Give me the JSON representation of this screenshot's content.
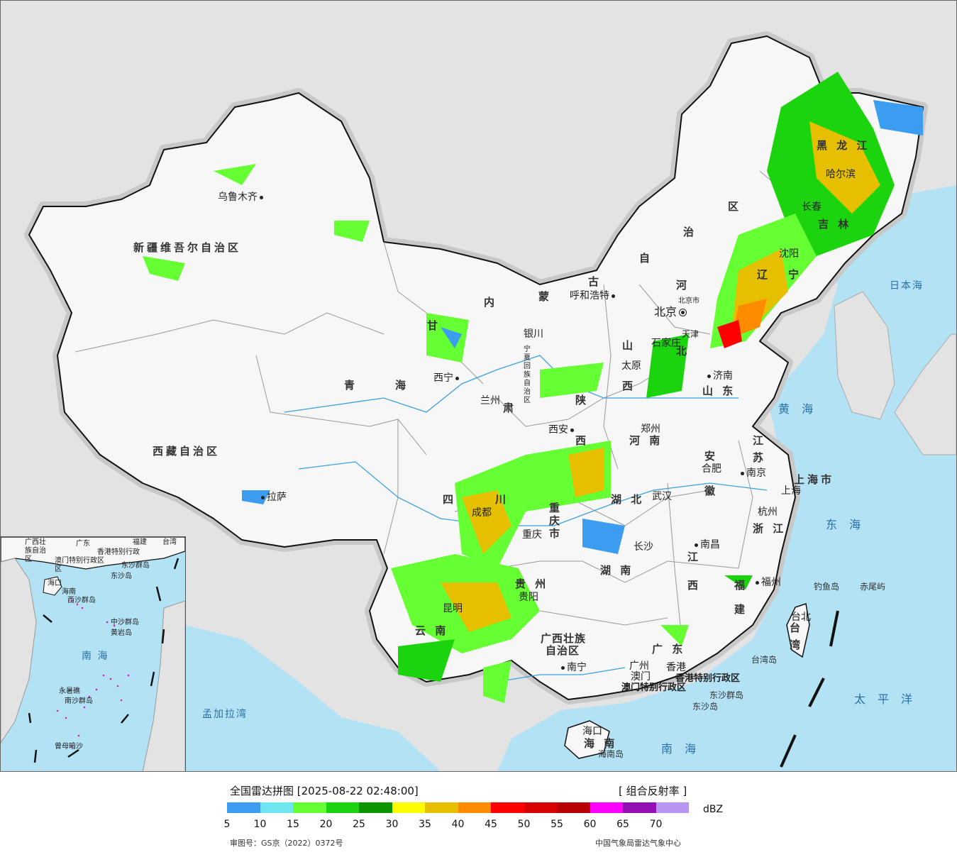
{
  "legend": {
    "title": "全国雷达拼图 [2025-08-22 02:48:00]",
    "product": "[ 组合反射率 ]",
    "unit": "dBZ",
    "colors": [
      "#3b9cf0",
      "#6ee6f0",
      "#66ff33",
      "#1cd40e",
      "#0b9400",
      "#fffb00",
      "#e6c000",
      "#ff8c00",
      "#ff0000",
      "#d80000",
      "#b80000",
      "#ff00ff",
      "#9410b4",
      "#b696f0"
    ],
    "ticks": [
      "5",
      "10",
      "15",
      "20",
      "25",
      "30",
      "35",
      "40",
      "45",
      "50",
      "55",
      "60",
      "65",
      "70"
    ],
    "approval": "审图号：GS京（2022）0372号",
    "agency": "中国气象局雷达气象中心"
  },
  "map": {
    "colors": {
      "land": "#f7f7f7",
      "sea": "#b3e2f5",
      "foreign": "#e3e3e3",
      "border": "#111111",
      "river": "#3aa0e0"
    },
    "regions": [
      {
        "id": "xinjiang",
        "text": "新疆维吾尔自治区"
      },
      {
        "id": "xizang",
        "text": "西藏自治区"
      },
      {
        "id": "qinghai-1",
        "text": "青"
      },
      {
        "id": "qinghai-2",
        "text": "海"
      },
      {
        "id": "gansu",
        "text": "甘"
      },
      {
        "id": "gansu-2",
        "text": "肃"
      },
      {
        "id": "neimenggu-1",
        "text": "内"
      },
      {
        "id": "neimenggu-2",
        "text": "蒙"
      },
      {
        "id": "neimenggu-3",
        "text": "古"
      },
      {
        "id": "neimenggu-4",
        "text": "自"
      },
      {
        "id": "neimenggu-5",
        "text": "治"
      },
      {
        "id": "neimenggu-6",
        "text": "区"
      },
      {
        "id": "heilongjiang",
        "text": "黑 龙 江"
      },
      {
        "id": "jilin",
        "text": "吉 林"
      },
      {
        "id": "liaoning-1",
        "text": "辽"
      },
      {
        "id": "liaoning-2",
        "text": "宁"
      },
      {
        "id": "hebei-1",
        "text": "河"
      },
      {
        "id": "hebei-2",
        "text": "北"
      },
      {
        "id": "shanxi-1",
        "text": "山"
      },
      {
        "id": "shanxi-2",
        "text": "西"
      },
      {
        "id": "shandong",
        "text": "山 东"
      },
      {
        "id": "henan",
        "text": "河 南"
      },
      {
        "id": "shaanxi-1",
        "text": "陕"
      },
      {
        "id": "shaanxi-2",
        "text": "西"
      },
      {
        "id": "ningxia",
        "text": "宁夏回族自治区"
      },
      {
        "id": "sichuan-1",
        "text": "四"
      },
      {
        "id": "sichuan-2",
        "text": "川"
      },
      {
        "id": "chongqing",
        "text": "重庆市"
      },
      {
        "id": "hubei",
        "text": "湖 北"
      },
      {
        "id": "hunan",
        "text": "湖 南"
      },
      {
        "id": "anhui-1",
        "text": "安"
      },
      {
        "id": "anhui-2",
        "text": "徽"
      },
      {
        "id": "jiangsu-1",
        "text": "江"
      },
      {
        "id": "jiangsu-2",
        "text": "苏"
      },
      {
        "id": "shanghai",
        "text": "上海市"
      },
      {
        "id": "zhejiang",
        "text": "浙 江"
      },
      {
        "id": "jiangxi-1",
        "text": "江"
      },
      {
        "id": "jiangxi-2",
        "text": "西"
      },
      {
        "id": "fujian-1",
        "text": "福"
      },
      {
        "id": "fujian-2",
        "text": "建"
      },
      {
        "id": "guizhou",
        "text": "贵 州"
      },
      {
        "id": "yunnan",
        "text": "云 南"
      },
      {
        "id": "guangxi-1",
        "text": "广西壮族"
      },
      {
        "id": "guangxi-2",
        "text": "自治区"
      },
      {
        "id": "guangdong",
        "text": "广 东"
      },
      {
        "id": "taiwan-1",
        "text": "台"
      },
      {
        "id": "taiwan-2",
        "text": "湾"
      },
      {
        "id": "hainan",
        "text": "海 南"
      },
      {
        "id": "tianjin",
        "text": "天津"
      },
      {
        "id": "beijing-city",
        "text": "北京市"
      }
    ],
    "cities": [
      {
        "id": "urumqi",
        "text": "乌鲁木齐"
      },
      {
        "id": "lhasa",
        "text": "拉萨"
      },
      {
        "id": "xining",
        "text": "西宁"
      },
      {
        "id": "lanzhou",
        "text": "兰州"
      },
      {
        "id": "yinchuan",
        "text": "银川"
      },
      {
        "id": "hohhot",
        "text": "呼和浩特"
      },
      {
        "id": "beijing",
        "text": "北京"
      },
      {
        "id": "shijiazhuang",
        "text": "石家庄"
      },
      {
        "id": "taiyuan",
        "text": "太原"
      },
      {
        "id": "jinan",
        "text": "济南"
      },
      {
        "id": "xian",
        "text": "西安"
      },
      {
        "id": "zhengzhou",
        "text": "郑州"
      },
      {
        "id": "hefei",
        "text": "合肥"
      },
      {
        "id": "nanjing",
        "text": "南京"
      },
      {
        "id": "shanghai-city",
        "text": "上海"
      },
      {
        "id": "hangzhou",
        "text": "杭州"
      },
      {
        "id": "wuhan",
        "text": "武汉"
      },
      {
        "id": "chengdu",
        "text": "成都"
      },
      {
        "id": "chongqing-city",
        "text": "重庆"
      },
      {
        "id": "changsha",
        "text": "长沙"
      },
      {
        "id": "nanchang",
        "text": "南昌"
      },
      {
        "id": "fuzhou",
        "text": "福州"
      },
      {
        "id": "guiyang",
        "text": "贵阳"
      },
      {
        "id": "kunming",
        "text": "昆明"
      },
      {
        "id": "nanning",
        "text": "南宁"
      },
      {
        "id": "guangzhou",
        "text": "广州"
      },
      {
        "id": "hongkong",
        "text": "香港"
      },
      {
        "id": "macau",
        "text": "澳门"
      },
      {
        "id": "haikou",
        "text": "海口"
      },
      {
        "id": "taibei",
        "text": "台北"
      },
      {
        "id": "changchun",
        "text": "长春"
      },
      {
        "id": "shenyang",
        "text": "沈阳"
      },
      {
        "id": "harbin",
        "text": "哈尔滨"
      }
    ],
    "sars": [
      {
        "id": "hk-sar",
        "text": "香港特别行政区"
      },
      {
        "id": "mo-sar",
        "text": "澳门特别行政区"
      }
    ],
    "seas": [
      {
        "id": "japan-sea",
        "text": "日本海"
      },
      {
        "id": "yellow-sea",
        "text": "黄 海"
      },
      {
        "id": "east-sea",
        "text": "东 海"
      },
      {
        "id": "south-sea",
        "text": "南 海"
      },
      {
        "id": "pacific",
        "text": "太 平 洋"
      },
      {
        "id": "bengal",
        "text": "孟加拉湾"
      }
    ],
    "islands": [
      {
        "id": "diaoyu",
        "text": "钓鱼岛"
      },
      {
        "id": "chiwei",
        "text": "赤尾屿"
      },
      {
        "id": "taiwan-island",
        "text": "台湾岛"
      },
      {
        "id": "dongsha-qd",
        "text": "东沙群岛"
      },
      {
        "id": "dongsha",
        "text": "东沙岛"
      },
      {
        "id": "hainan-island",
        "text": "海南岛"
      }
    ],
    "inset": {
      "labels": [
        {
          "id": "in-gx",
          "text": "广西壮族自治区"
        },
        {
          "id": "in-gd",
          "text": "广东"
        },
        {
          "id": "in-fj",
          "text": "福建"
        },
        {
          "id": "in-tw",
          "text": "台湾"
        },
        {
          "id": "in-hk",
          "text": "香港特别行政区"
        },
        {
          "id": "in-mo",
          "text": "澳门特别行政区"
        },
        {
          "id": "in-dsqd",
          "text": "东沙群岛"
        },
        {
          "id": "in-dsd",
          "text": "东沙岛"
        },
        {
          "id": "in-haikou",
          "text": "海口"
        },
        {
          "id": "in-hn",
          "text": "海南"
        },
        {
          "id": "in-xsqd",
          "text": "西沙群岛"
        },
        {
          "id": "in-zsqd",
          "text": "中沙群岛"
        },
        {
          "id": "in-hy",
          "text": "黄岩岛"
        },
        {
          "id": "in-nansea",
          "text": "南 海"
        },
        {
          "id": "in-yongshu",
          "text": "永暑礁"
        },
        {
          "id": "in-nsqd",
          "text": "南沙群岛"
        },
        {
          "id": "in-zengmu",
          "text": "曾母暗沙"
        }
      ]
    }
  }
}
